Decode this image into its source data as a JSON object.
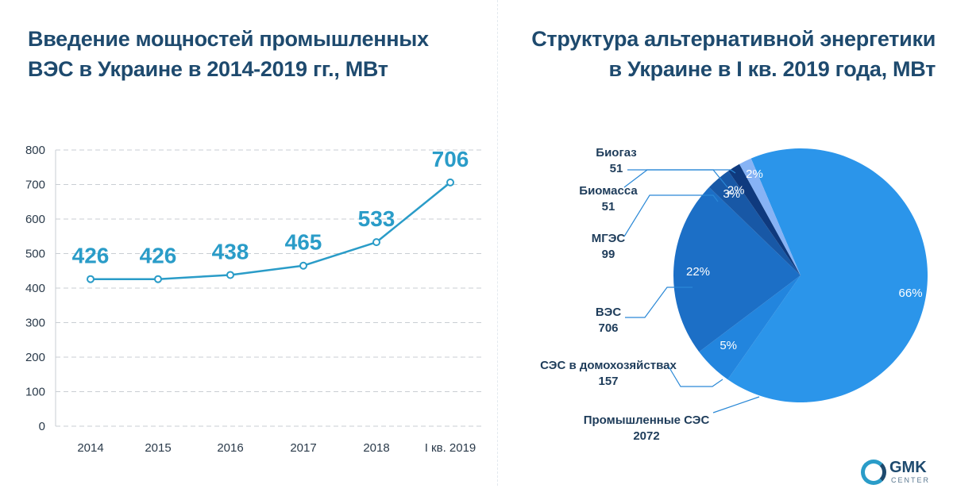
{
  "left_chart": {
    "title_line1": "Введение мощностей промышленных",
    "title_line2": "ВЭС в Украине в 2014-2019 гг., МВт"
  },
  "right_chart": {
    "title_line1": "Структура альтернативной энергетики",
    "title_line2": "в Украине в I кв. 2019 года, МВт"
  },
  "logo": {
    "name": "GMK",
    "sub": "CENTER"
  },
  "colors": {
    "line": "#2a9cc8",
    "title": "#1e4a6e",
    "grid": "#c9ced3"
  },
  "chart_data": [
    {
      "type": "line",
      "title": "Введение мощностей промышленных ВЭС в Украине в 2014-2019 гг., МВт",
      "categories": [
        "2014",
        "2015",
        "2016",
        "2017",
        "2018",
        "I кв. 2019"
      ],
      "values": [
        426,
        426,
        438,
        465,
        533,
        706
      ],
      "data_labels": [
        "426",
        "426",
        "438",
        "465",
        "533",
        "706"
      ],
      "ylim": [
        0,
        800
      ],
      "yticks": [
        "0",
        "100",
        "200",
        "300",
        "400",
        "500",
        "600",
        "700",
        "800"
      ],
      "grid": true,
      "xlabel": "",
      "ylabel": ""
    },
    {
      "type": "pie",
      "title": "Структура альтернативной энергетики в Украине в I кв. 2019 года, МВт",
      "slices": [
        {
          "name": "Промышленные СЭС",
          "value": 2072,
          "percent_label": "66%",
          "color": "#2b95ea"
        },
        {
          "name": "СЭС в домохозяйствах",
          "value": 157,
          "percent_label": "5%",
          "color": "#2285de"
        },
        {
          "name": "ВЭС",
          "value": 706,
          "percent_label": "22%",
          "color": "#1c6fc6"
        },
        {
          "name": "МГЭС",
          "value": 99,
          "percent_label": "3%",
          "color": "#1858a6"
        },
        {
          "name": "Биомасса",
          "value": 51,
          "percent_label": "2%",
          "color": "#0f3a7e"
        },
        {
          "name": "Биогаз",
          "value": 51,
          "percent_label": "2%",
          "color": "#87b3f5"
        }
      ]
    }
  ]
}
